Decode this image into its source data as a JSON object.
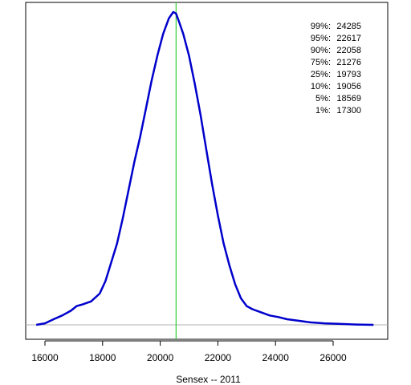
{
  "chart_data": {
    "type": "line",
    "title": "",
    "xlabel": "Sensex -- 2011",
    "ylabel": "",
    "xlim": [
      15600,
      27600
    ],
    "ylim": [
      -0.02,
      1.05
    ],
    "x_ticks": [
      16000,
      18000,
      20000,
      22000,
      24000,
      26000
    ],
    "x_tick_labels": [
      "16000",
      "18000",
      "20000",
      "22000",
      "24000",
      "26000"
    ],
    "baseline": 0,
    "vline": {
      "x": 20550,
      "color": "#33cc33"
    },
    "series": [
      {
        "color": "#0000cc",
        "x": [
          15700,
          16000,
          16300,
          16600,
          16900,
          17100,
          17300,
          17600,
          17900,
          18100,
          18300,
          18500,
          18700,
          18900,
          19100,
          19300,
          19500,
          19700,
          19900,
          20100,
          20300,
          20450,
          20550,
          20650,
          20800,
          21000,
          21200,
          21400,
          21600,
          21800,
          22000,
          22200,
          22400,
          22600,
          22800,
          23000,
          23200,
          23500,
          23800,
          24100,
          24400,
          24800,
          25200,
          25700,
          26200,
          26800,
          27400
        ],
        "y": [
          0.0,
          0.005,
          0.018,
          0.03,
          0.045,
          0.06,
          0.065,
          0.075,
          0.1,
          0.14,
          0.2,
          0.26,
          0.34,
          0.43,
          0.52,
          0.6,
          0.69,
          0.78,
          0.86,
          0.93,
          0.98,
          1.0,
          0.995,
          0.97,
          0.93,
          0.86,
          0.77,
          0.67,
          0.56,
          0.45,
          0.35,
          0.26,
          0.19,
          0.13,
          0.085,
          0.06,
          0.05,
          0.04,
          0.03,
          0.025,
          0.018,
          0.013,
          0.008,
          0.005,
          0.003,
          0.001,
          0.0
        ]
      }
    ],
    "annotations": [
      {
        "pct": "99%:",
        "value": "24285"
      },
      {
        "pct": "95%:",
        "value": "22617"
      },
      {
        "pct": "90%:",
        "value": "22058"
      },
      {
        "pct": "75%:",
        "value": "21276"
      },
      {
        "pct": "25%:",
        "value": "19793"
      },
      {
        "pct": "10%:",
        "value": "19056"
      },
      {
        "pct": "5%:",
        "value": "18569"
      },
      {
        "pct": "1%:",
        "value": "17300"
      }
    ],
    "grid": false,
    "legend": "none"
  }
}
